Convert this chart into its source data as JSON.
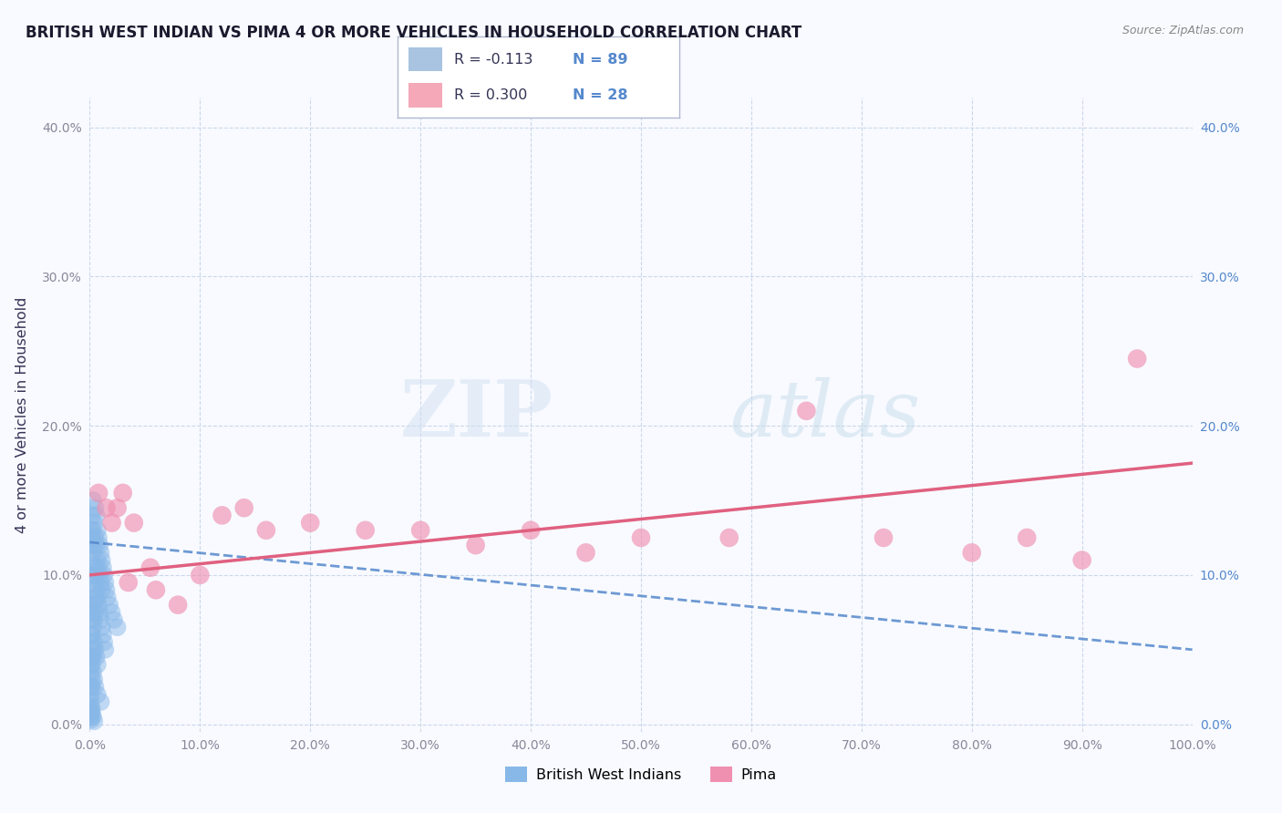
{
  "title": "BRITISH WEST INDIAN VS PIMA 4 OR MORE VEHICLES IN HOUSEHOLD CORRELATION CHART",
  "source": "Source: ZipAtlas.com",
  "ylabel": "4 or more Vehicles in Household",
  "watermark_zip": "ZIP",
  "watermark_atlas": "atlas",
  "legend1_r": "R = -0.113",
  "legend1_n": "N = 89",
  "legend2_r": "R = 0.300",
  "legend2_n": "N = 28",
  "blue_legend_color": "#a8c4e0",
  "pink_legend_color": "#f4a8b8",
  "blue_line_color": "#5588cc",
  "pink_line_color": "#e06080",
  "blue_scatter_color": "#88b8e8",
  "pink_scatter_color": "#f090b0",
  "xlim": [
    0.0,
    1.0
  ],
  "ylim": [
    -0.005,
    0.42
  ],
  "xticks": [
    0.0,
    0.1,
    0.2,
    0.3,
    0.4,
    0.5,
    0.6,
    0.7,
    0.8,
    0.9,
    1.0
  ],
  "xtick_labels": [
    "0.0%",
    "10.0%",
    "20.0%",
    "30.0%",
    "40.0%",
    "50.0%",
    "60.0%",
    "70.0%",
    "80.0%",
    "90.0%",
    "100.0%"
  ],
  "yticks": [
    0.0,
    0.1,
    0.2,
    0.3,
    0.4
  ],
  "ytick_labels": [
    "0.0%",
    "10.0%",
    "20.0%",
    "30.0%",
    "40.0%"
  ],
  "blue_points_x": [
    0.001,
    0.001,
    0.001,
    0.001,
    0.002,
    0.002,
    0.002,
    0.002,
    0.003,
    0.003,
    0.003,
    0.003,
    0.004,
    0.004,
    0.004,
    0.005,
    0.005,
    0.005,
    0.006,
    0.006,
    0.006,
    0.007,
    0.007,
    0.008,
    0.008,
    0.009,
    0.009,
    0.01,
    0.01,
    0.011,
    0.011,
    0.012,
    0.013,
    0.014,
    0.015,
    0.016,
    0.018,
    0.02,
    0.022,
    0.025,
    0.001,
    0.001,
    0.001,
    0.002,
    0.002,
    0.003,
    0.003,
    0.004,
    0.004,
    0.005,
    0.005,
    0.006,
    0.007,
    0.008,
    0.009,
    0.01,
    0.011,
    0.012,
    0.013,
    0.014,
    0.001,
    0.001,
    0.002,
    0.002,
    0.003,
    0.003,
    0.004,
    0.005,
    0.006,
    0.007,
    0.001,
    0.001,
    0.001,
    0.002,
    0.002,
    0.003,
    0.004,
    0.005,
    0.007,
    0.01,
    0.0,
    0.001,
    0.001,
    0.001,
    0.001,
    0.002,
    0.002,
    0.003,
    0.004
  ],
  "blue_points_y": [
    0.13,
    0.12,
    0.1,
    0.08,
    0.14,
    0.125,
    0.11,
    0.095,
    0.15,
    0.13,
    0.115,
    0.09,
    0.135,
    0.12,
    0.1,
    0.145,
    0.125,
    0.105,
    0.14,
    0.12,
    0.1,
    0.13,
    0.11,
    0.125,
    0.105,
    0.12,
    0.1,
    0.115,
    0.095,
    0.11,
    0.09,
    0.105,
    0.1,
    0.095,
    0.09,
    0.085,
    0.08,
    0.075,
    0.07,
    0.065,
    0.06,
    0.055,
    0.045,
    0.07,
    0.06,
    0.075,
    0.065,
    0.08,
    0.07,
    0.085,
    0.075,
    0.09,
    0.085,
    0.08,
    0.075,
    0.07,
    0.065,
    0.06,
    0.055,
    0.05,
    0.04,
    0.035,
    0.045,
    0.04,
    0.05,
    0.045,
    0.055,
    0.05,
    0.045,
    0.04,
    0.025,
    0.02,
    0.015,
    0.03,
    0.025,
    0.035,
    0.03,
    0.025,
    0.02,
    0.015,
    0.01,
    0.008,
    0.005,
    0.003,
    0.012,
    0.01,
    0.007,
    0.005,
    0.002
  ],
  "pink_points_x": [
    0.008,
    0.015,
    0.02,
    0.03,
    0.025,
    0.04,
    0.055,
    0.06,
    0.08,
    0.1,
    0.12,
    0.14,
    0.16,
    0.2,
    0.25,
    0.3,
    0.35,
    0.4,
    0.45,
    0.5,
    0.58,
    0.65,
    0.72,
    0.8,
    0.85,
    0.9,
    0.95,
    0.035
  ],
  "pink_points_y": [
    0.155,
    0.145,
    0.135,
    0.155,
    0.145,
    0.135,
    0.105,
    0.09,
    0.08,
    0.1,
    0.14,
    0.145,
    0.13,
    0.135,
    0.13,
    0.13,
    0.12,
    0.13,
    0.115,
    0.125,
    0.125,
    0.21,
    0.125,
    0.115,
    0.125,
    0.11,
    0.245,
    0.095
  ],
  "blue_line_y_start": 0.122,
  "blue_line_y_end": 0.05,
  "pink_line_y_start": 0.1,
  "pink_line_y_end": 0.175,
  "grid_color": "#c8d4e8",
  "background_color": "#f8faff",
  "title_color": "#1a1a2e",
  "axis_label_color": "#333355",
  "right_axis_color": "#5588cc",
  "tick_color": "#888899",
  "bottom_legend_labels": [
    "British West Indians",
    "Pima"
  ]
}
